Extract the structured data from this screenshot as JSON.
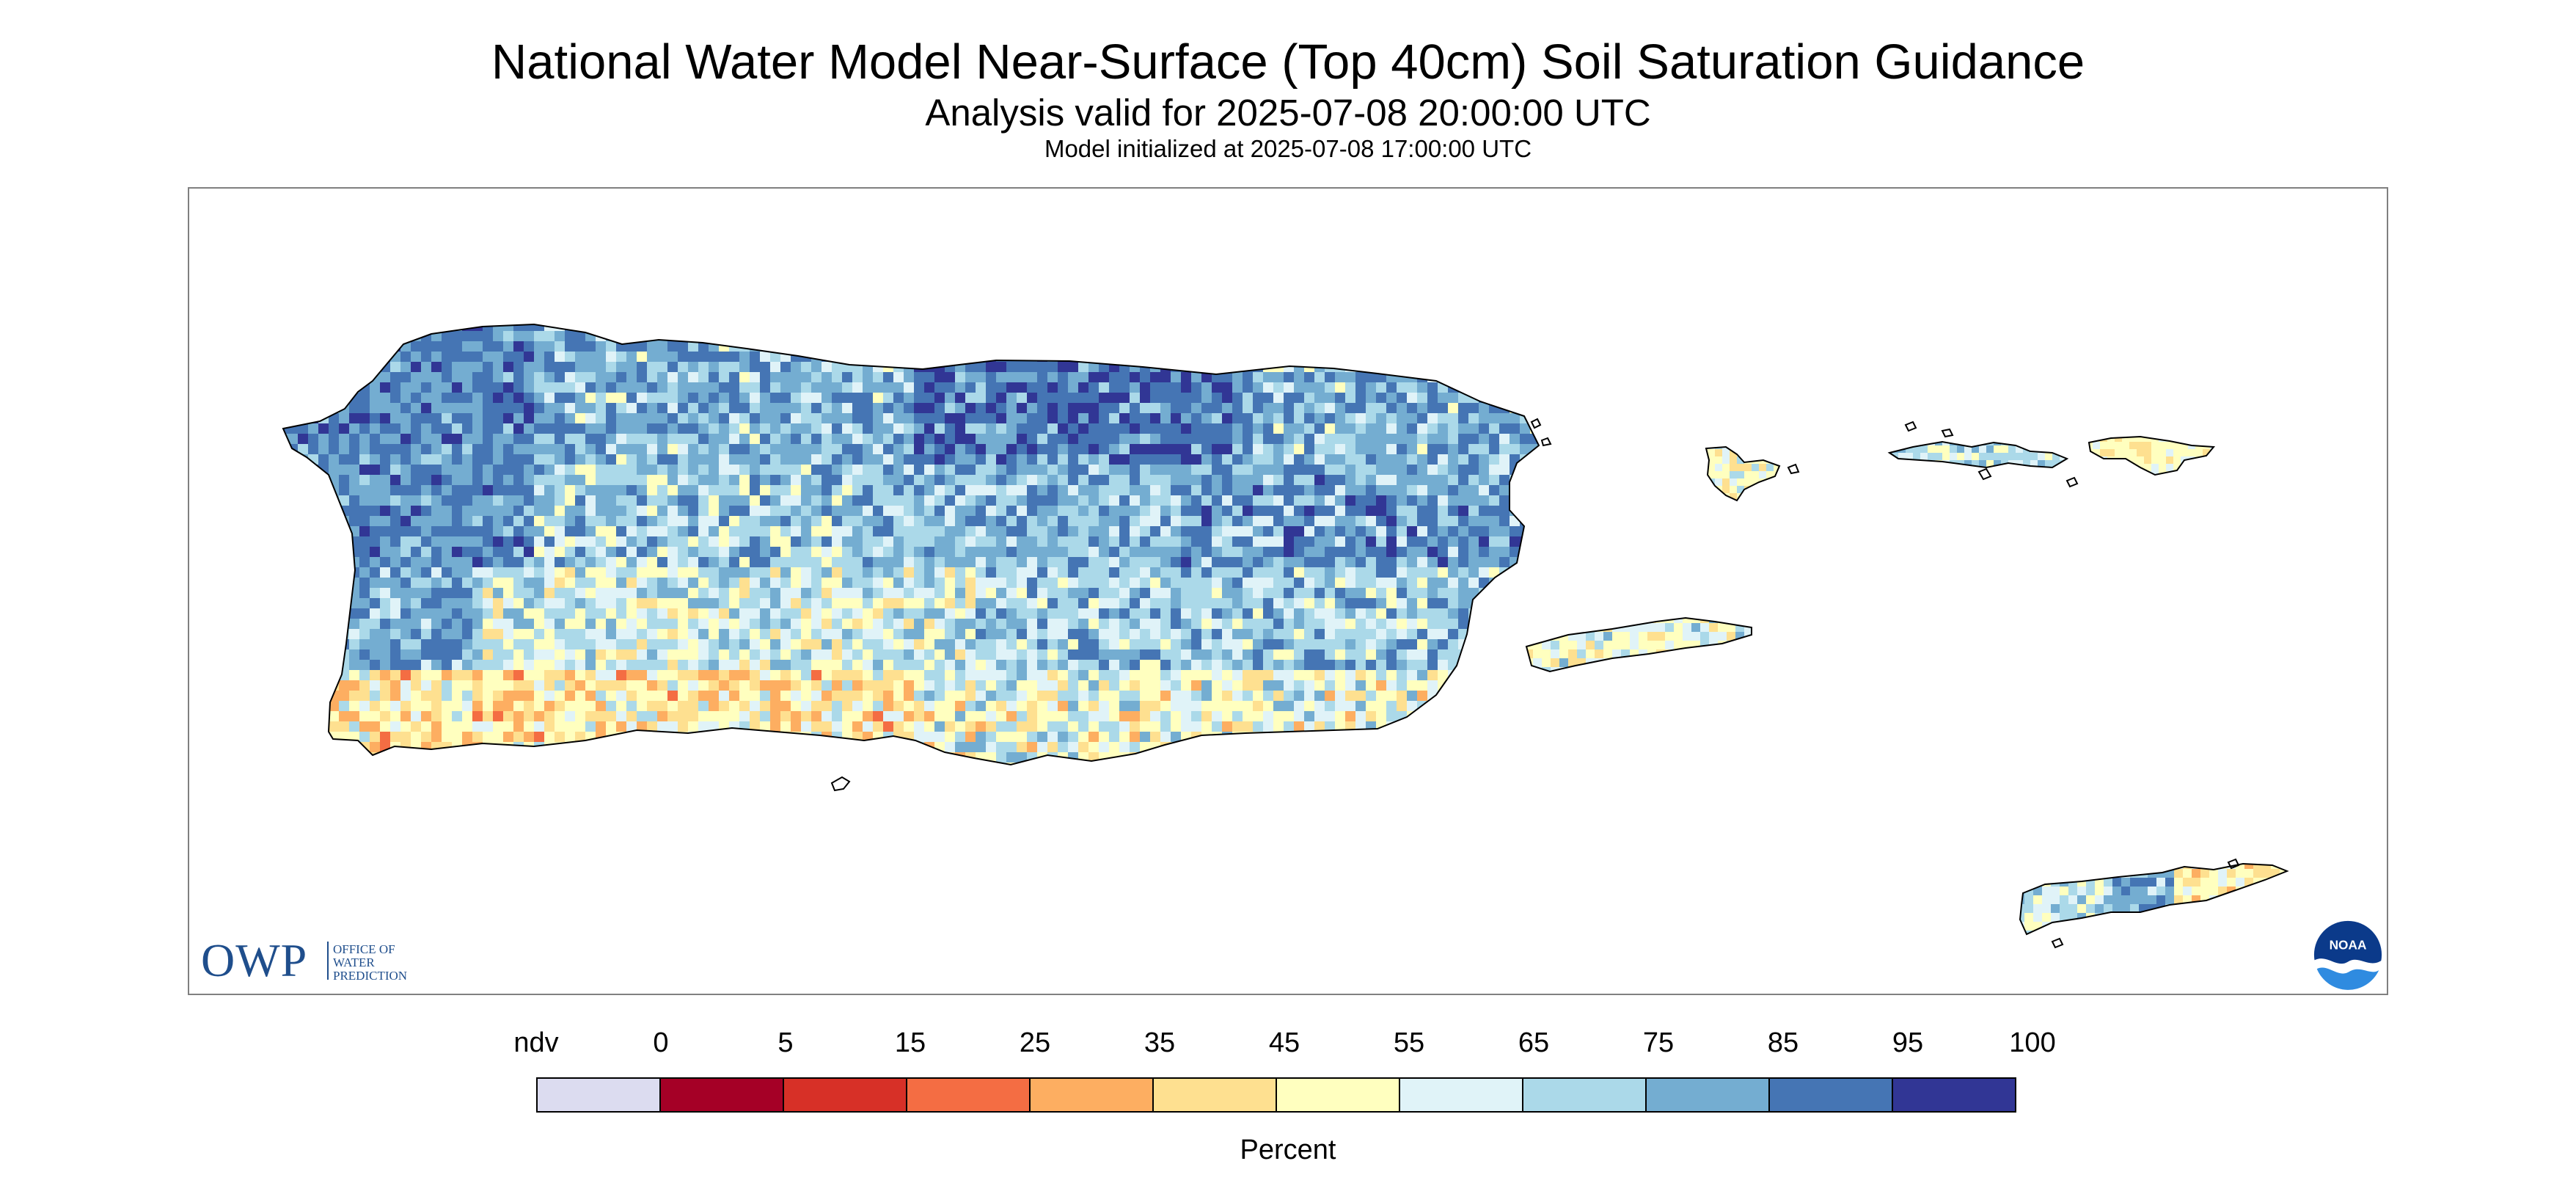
{
  "header": {
    "title": "National Water Model Near-Surface (Top 40cm) Soil Saturation Guidance",
    "subtitle": "Analysis valid for 2025-07-08 20:00:00 UTC",
    "init_text": "Model initialized at 2025-07-08 17:00:00 UTC"
  },
  "owp_logo": {
    "mark": "OWP",
    "line1": "OFFICE OF",
    "line2": "WATER",
    "line3": "PREDICTION"
  },
  "noaa_logo": {
    "text": "NOAA",
    "icon": "noaa-seal-icon"
  },
  "legend": {
    "ticks": [
      "ndv",
      "0",
      "5",
      "15",
      "25",
      "35",
      "45",
      "55",
      "65",
      "75",
      "85",
      "95",
      "100"
    ],
    "colors": [
      "#dcdcf0",
      "#a50026",
      "#d73027",
      "#f46d43",
      "#fdae61",
      "#fee090",
      "#ffffbf",
      "#e0f3f8",
      "#abd9e9",
      "#74add1",
      "#4575b4",
      "#313695"
    ],
    "label": "Percent"
  },
  "map": {
    "regions": [
      "Puerto Rico",
      "Vieques",
      "Culebra",
      "St. Thomas / St. John",
      "St. Croix"
    ],
    "dominant_colors": [
      "#74add1",
      "#4575b4",
      "#abd9e9",
      "#e0f3f8",
      "#ffffbf",
      "#fee090",
      "#fdae61"
    ]
  }
}
